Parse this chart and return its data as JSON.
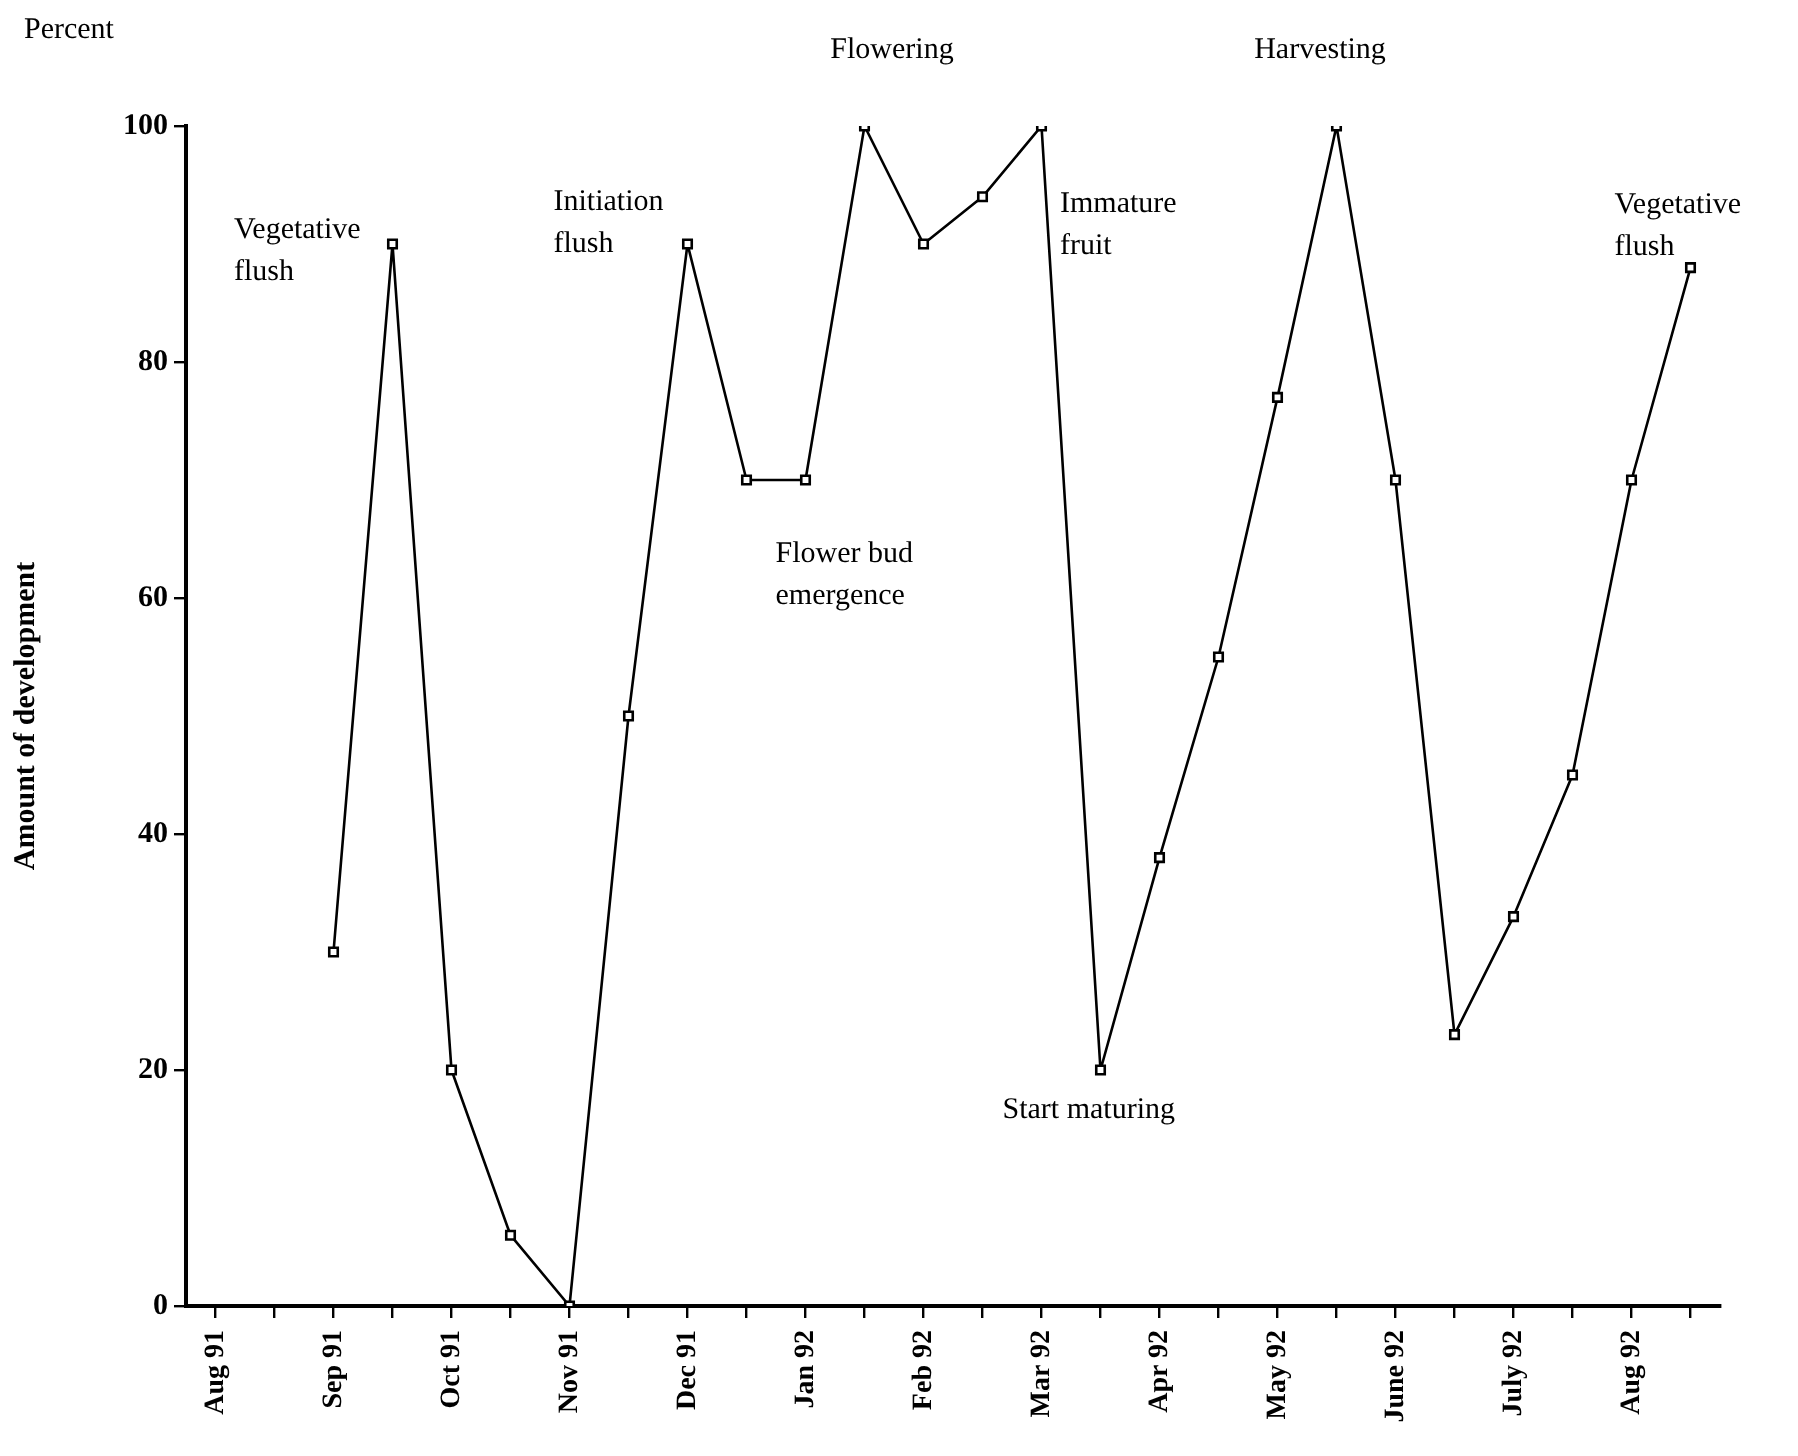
{
  "chart_data": {
    "type": "line",
    "ylabel": "Amount of development",
    "categories": [
      "Aug 91",
      null,
      "Sep 91",
      null,
      "Oct 91",
      null,
      "Nov 91",
      null,
      "Dec 91",
      null,
      "Jan 92",
      null,
      "Feb 92",
      null,
      "Mar 92",
      null,
      "Apr 92",
      null,
      "May 92",
      null,
      "June 92",
      null,
      "July 92",
      null,
      "Aug 92",
      null
    ],
    "values": [
      null,
      null,
      30,
      90,
      20,
      6,
      0,
      50,
      90,
      70,
      70,
      100,
      90,
      94,
      100,
      20,
      38,
      55,
      77,
      100,
      70,
      23,
      33,
      45,
      70,
      88
    ],
    "color": "#000000",
    "marker": "square",
    "line_style": "solid",
    "grid": false,
    "legend": false,
    "ylim": [
      0,
      100
    ],
    "yticks": [
      0,
      20,
      40,
      60,
      80,
      100
    ],
    "annotations": [
      "Percent",
      "Vegetative flush",
      {
        "text": "Initiation flush",
        "x": "Dec 91",
        "y": 90
      },
      "Flowering",
      {
        "text": "Flower bud emergence",
        "x": "Jan 92",
        "y": 70
      },
      {
        "text": "Start maturing",
        "y": 20
      },
      "Immature fruit",
      "Harvesting",
      {
        "text": "Vegetative flush",
        "y": 88
      }
    ]
  }
}
